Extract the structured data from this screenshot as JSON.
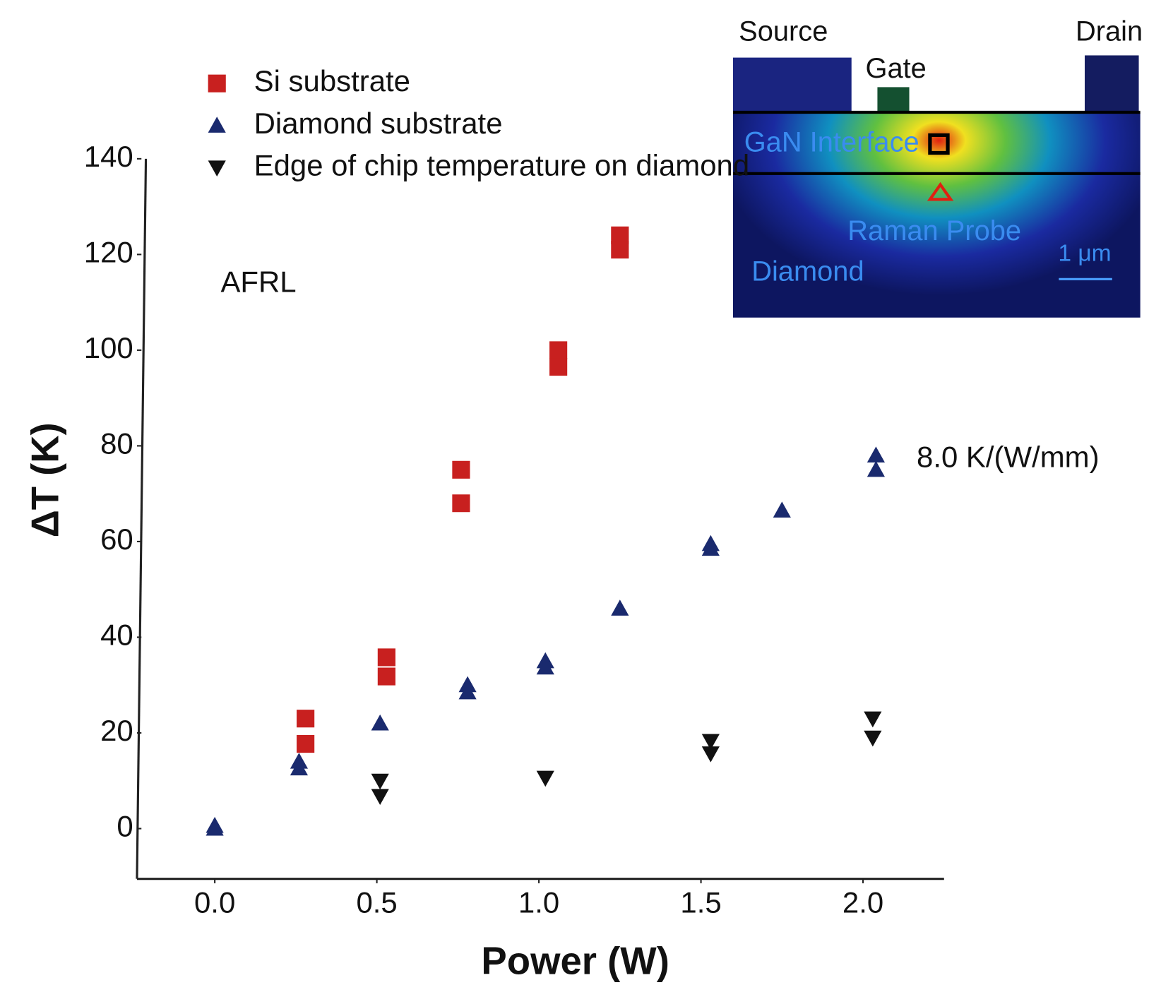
{
  "chart_data": {
    "type": "scatter",
    "xlabel": "Power (W)",
    "ylabel": "ΔT (K)",
    "xlim": [
      -0.24,
      2.25
    ],
    "ylim": [
      -10.5,
      140
    ],
    "xticks": [
      {
        "value": 0,
        "label": "0.0"
      },
      0.5,
      {
        "value": 1,
        "label": "1.0"
      },
      1.5,
      {
        "value": 2,
        "label": "2.0"
      }
    ],
    "yticks": [
      0,
      20,
      40,
      60,
      80,
      100,
      120,
      140
    ],
    "series": [
      {
        "name": "Si substrate",
        "color": "#c8201f",
        "marker": "square",
        "x": [
          0.28,
          0.28,
          0.53,
          0.53,
          0.76,
          0.76,
          1.06,
          1.06,
          1.25,
          1.25
        ],
        "values": [
          23,
          17.7,
          35.8,
          31.8,
          75,
          68,
          100,
          96.5,
          124,
          121
        ]
      },
      {
        "name": "Diamond substrate",
        "color": "#1a2a6e",
        "marker": "triangle-up",
        "x": [
          0,
          0,
          0.26,
          0.26,
          0.51,
          0.78,
          0.78,
          1.02,
          1.02,
          1.25,
          1.53,
          1.53,
          1.75,
          2.04,
          2.04
        ],
        "values": [
          0.6,
          0,
          14,
          12.6,
          22,
          30,
          28.5,
          35,
          33.7,
          46,
          59.5,
          58.5,
          66.5,
          78,
          75
        ]
      },
      {
        "name": "Edge of chip temperature on diamond",
        "color": "#111111",
        "marker": "triangle-down",
        "x": [
          0.51,
          0.51,
          1.02,
          1.53,
          1.53,
          2.03,
          2.03
        ],
        "values": [
          10,
          6.8,
          10.6,
          18.3,
          15.7,
          23,
          19
        ]
      }
    ],
    "annotations": [
      "AFRL",
      "8.0 K/(W/mm)"
    ],
    "inset": {
      "source": "Source",
      "gate": "Gate",
      "drain": "Drain",
      "interface": "GaN Interface",
      "probe": "Raman Probe",
      "substrate": "Diamond",
      "scale": "1 μm"
    }
  }
}
